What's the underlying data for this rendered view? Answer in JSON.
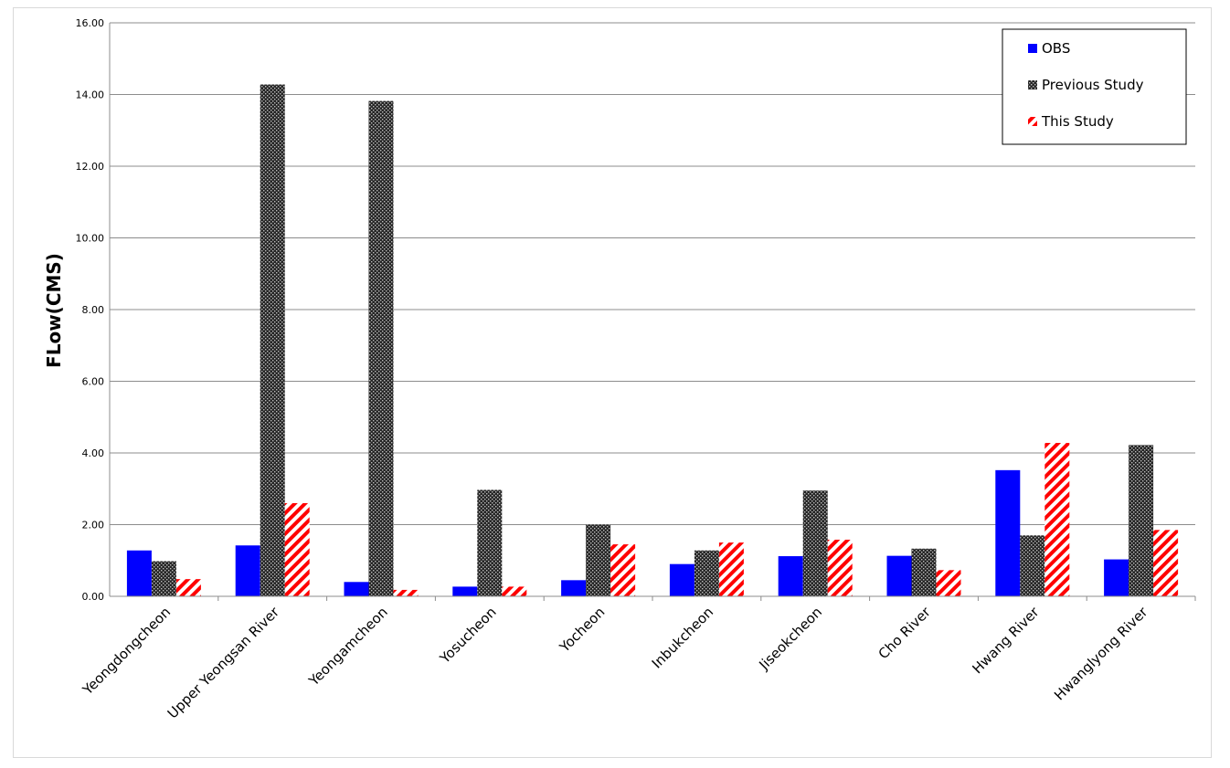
{
  "chart_data": {
    "type": "bar",
    "title": "",
    "xlabel": "",
    "ylabel": "FLow(CMS)",
    "ylim": [
      0,
      16
    ],
    "yticks": [
      "0.00",
      "2.00",
      "4.00",
      "6.00",
      "8.00",
      "10.00",
      "12.00",
      "14.00",
      "16.00"
    ],
    "grid": true,
    "legend_position": "top-right",
    "categories": [
      "Yeongdongcheon",
      "Upper Yeongsan River",
      "Yeongamcheon",
      "Yosucheon",
      "Yocheon",
      "Inbukcheon",
      "Jiseokcheon",
      "Cho River",
      "Hwang River",
      "Hwanglyong River"
    ],
    "series": [
      {
        "name": "OBS",
        "color": "#0000ff",
        "pattern": "solid",
        "values": [
          1.28,
          1.42,
          0.4,
          0.27,
          0.45,
          0.9,
          1.12,
          1.13,
          3.52,
          1.03
        ]
      },
      {
        "name": "Previous Study",
        "color": "#404040",
        "pattern": "dots",
        "values": [
          0.98,
          14.28,
          13.82,
          2.97,
          2.0,
          1.28,
          2.95,
          1.33,
          1.7,
          4.22
        ]
      },
      {
        "name": "This Study",
        "color": "#ff0000",
        "pattern": "hatch",
        "values": [
          0.48,
          2.6,
          0.18,
          0.27,
          1.45,
          1.5,
          1.58,
          0.73,
          4.28,
          1.85
        ]
      }
    ]
  }
}
